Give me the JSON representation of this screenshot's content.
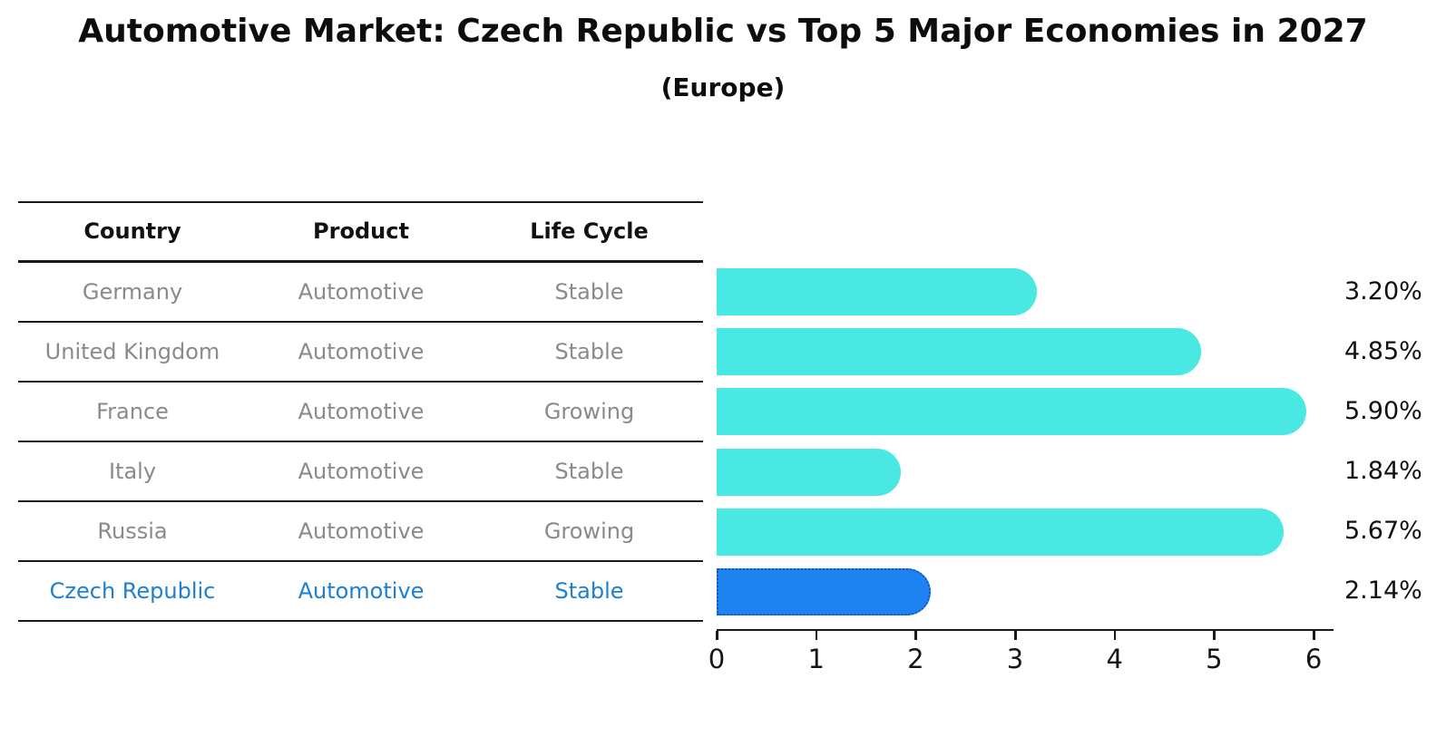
{
  "title": "Automotive Market: Czech Republic vs Top 5 Major Economies in 2027",
  "subtitle": "(Europe)",
  "table": {
    "headers": [
      "Country",
      "Product",
      "Life Cycle"
    ],
    "rows": [
      {
        "country": "Germany",
        "product": "Automotive",
        "life_cycle": "Stable"
      },
      {
        "country": "United Kingdom",
        "product": "Automotive",
        "life_cycle": "Stable"
      },
      {
        "country": "France",
        "product": "Automotive",
        "life_cycle": "Growing"
      },
      {
        "country": "Italy",
        "product": "Automotive",
        "life_cycle": "Stable"
      },
      {
        "country": "Russia",
        "product": "Automotive",
        "life_cycle": "Growing"
      },
      {
        "country": "Czech Republic",
        "product": "Automotive",
        "life_cycle": "Stable"
      }
    ],
    "highlight_row": 5,
    "highlight_text_color": "#1d7fd1",
    "body_text_color": "#8a8a8a"
  },
  "chart_data": {
    "type": "bar",
    "orientation": "horizontal",
    "categories": [
      "Germany",
      "United Kingdom",
      "France",
      "Italy",
      "Russia",
      "Czech Republic"
    ],
    "values": [
      3.2,
      4.85,
      5.9,
      1.84,
      5.67,
      2.14
    ],
    "value_labels": [
      "3.20%",
      "4.85%",
      "5.90%",
      "1.84%",
      "5.67%",
      "2.14%"
    ],
    "xlim": [
      0,
      6.2
    ],
    "xticks": [
      "0",
      "1",
      "2",
      "3",
      "4",
      "5",
      "6"
    ],
    "grid": "off",
    "legend": "none",
    "bar_color": "#4AE8E2",
    "highlight_index": 5,
    "highlight_color": "#1E82F0",
    "highlight_border_color": "#0f55c8",
    "title": "Automotive Market: Czech Republic vs Top 5 Major Economies in 2027",
    "subtitle": "(Europe)"
  }
}
